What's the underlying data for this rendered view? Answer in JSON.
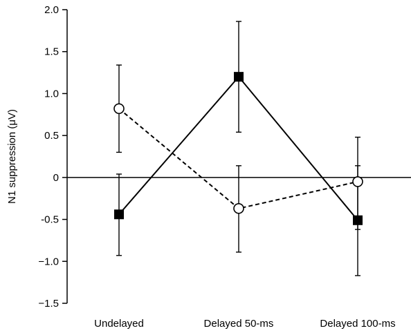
{
  "chart_data": {
    "type": "line",
    "title": "",
    "xlabel": "",
    "ylabel": "N1 suppression (μV)",
    "categories": [
      "Undelayed",
      "Delayed 50-ms",
      "Delayed 100-ms"
    ],
    "ylim": [
      -1.5,
      2.0
    ],
    "yticks": [
      2.0,
      1.5,
      1.0,
      0.5,
      0,
      -0.5,
      -1.0,
      -1.5
    ],
    "ytick_labels": [
      "2.0",
      "1.5",
      "1.0",
      "0.5",
      "0",
      "-0.5",
      "−1.0",
      "−1.5"
    ],
    "reference_line_y": 0,
    "series": [
      {
        "marker": "filled-square",
        "line_style": "solid",
        "color": "#000000",
        "values": [
          -0.44,
          1.2,
          -0.51
        ],
        "error_low": [
          -0.93,
          0.54,
          -1.17
        ],
        "error_high": [
          0.04,
          1.86,
          0.14
        ]
      },
      {
        "marker": "open-circle",
        "line_style": "dashed",
        "color": "#000000",
        "values": [
          0.82,
          -0.37,
          -0.05
        ],
        "error_low": [
          0.3,
          -0.89,
          -0.62
        ],
        "error_high": [
          1.34,
          0.14,
          0.48
        ]
      }
    ],
    "grid": false,
    "legend": "none"
  }
}
